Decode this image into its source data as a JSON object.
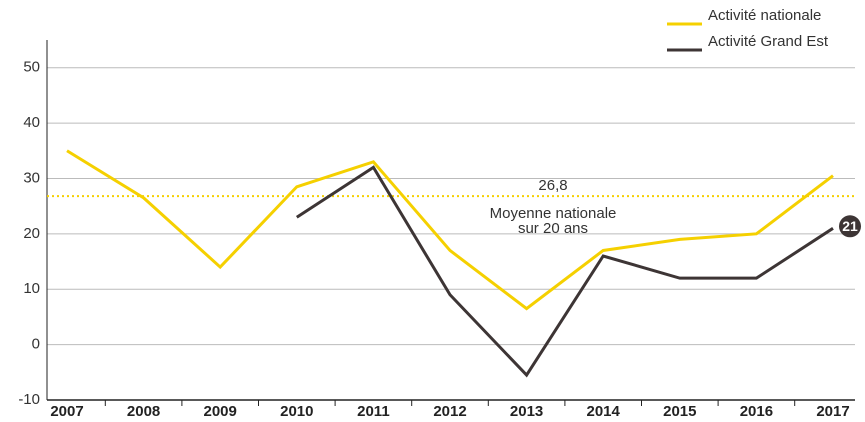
{
  "chart_data": {
    "type": "line",
    "categories": [
      "2007",
      "2008",
      "2009",
      "2010",
      "2011",
      "2012",
      "2013",
      "2014",
      "2015",
      "2016",
      "2017"
    ],
    "series": [
      {
        "name": "Activité nationale",
        "color": "#f5d000",
        "values": [
          35,
          26.5,
          14,
          28.5,
          33,
          17,
          6.5,
          17,
          19,
          20,
          30.5
        ]
      },
      {
        "name": "Activité Grand Est",
        "color": "#3d3535",
        "values": [
          null,
          null,
          null,
          23,
          32,
          9,
          -5.5,
          16,
          12,
          12,
          21
        ]
      }
    ],
    "ylim": [
      -10,
      55
    ],
    "yticks": [
      -10,
      0,
      10,
      20,
      30,
      40,
      50
    ],
    "grid": true,
    "average": {
      "value": 26.8,
      "label": "26,8",
      "text": [
        "Moyenne nationale",
        "sur 20 ans"
      ]
    },
    "end_label": "21"
  }
}
